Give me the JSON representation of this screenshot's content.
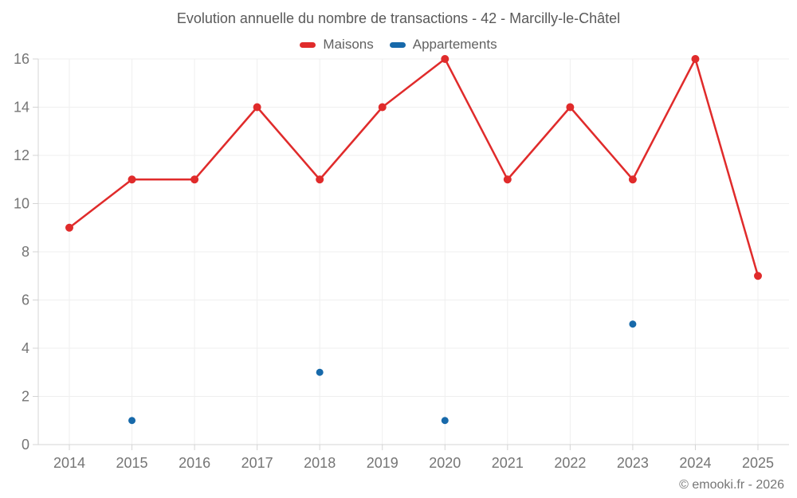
{
  "chart_data": {
    "type": "line",
    "title": "Evolution annuelle du nombre de transactions - 42 - Marcilly-le-Châtel",
    "categories": [
      "2014",
      "2015",
      "2016",
      "2017",
      "2018",
      "2019",
      "2020",
      "2021",
      "2022",
      "2023",
      "2024",
      "2025"
    ],
    "series": [
      {
        "name": "Maisons",
        "color": "#e02b2b",
        "draw": "line",
        "marker_radius": 5,
        "values": [
          9,
          11,
          11,
          14,
          11,
          14,
          16,
          11,
          14,
          11,
          16,
          7
        ]
      },
      {
        "name": "Appartements",
        "color": "#1769aa",
        "draw": "scatter",
        "marker_radius": 4.5,
        "values": [
          null,
          1,
          null,
          null,
          3,
          null,
          1,
          null,
          null,
          5,
          null,
          null
        ]
      }
    ],
    "xlabel": "",
    "ylabel": "",
    "ylim": [
      0,
      16
    ],
    "ytick_step": 2,
    "grid": true,
    "legend_position": "top",
    "grid_color": "#efefef",
    "axis_color": "#d4d4d4",
    "tick_label_color": "#757575"
  },
  "footer": {
    "copyright": "© emooki.fr - 2026"
  }
}
